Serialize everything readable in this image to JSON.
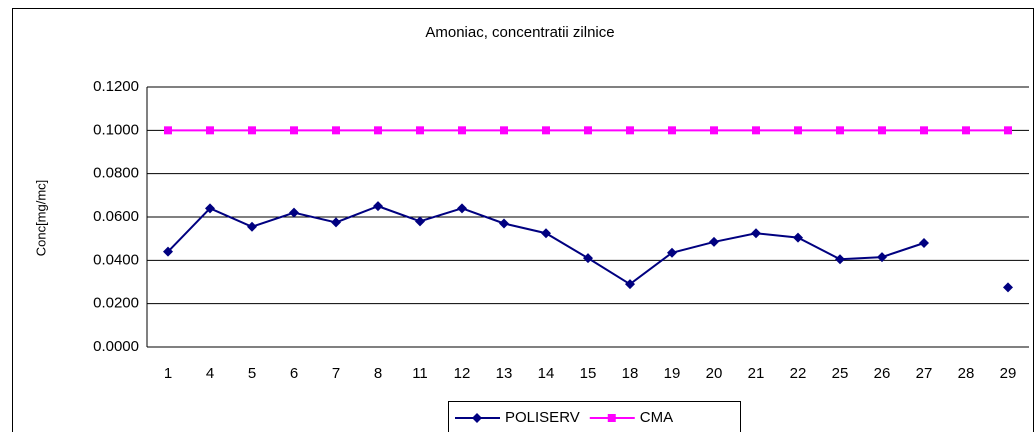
{
  "chart_data": {
    "type": "line",
    "title": "Amoniac, concentratii zilnice",
    "y_label": "Conc[mg/mc]",
    "categories": [
      "1",
      "4",
      "5",
      "6",
      "7",
      "8",
      "11",
      "12",
      "13",
      "14",
      "15",
      "18",
      "19",
      "20",
      "21",
      "22",
      "25",
      "26",
      "27",
      "28",
      "29"
    ],
    "series": [
      {
        "name": "POLISERV",
        "color": "#000080",
        "marker": "diamond",
        "values": [
          0.044,
          0.064,
          0.0555,
          0.062,
          0.0575,
          0.065,
          0.058,
          0.064,
          0.057,
          0.0525,
          0.041,
          0.029,
          0.0435,
          0.0485,
          0.0525,
          0.0505,
          0.0405,
          0.0415,
          0.048,
          null,
          0.0275
        ]
      },
      {
        "name": "CMA",
        "color": "#FF00FF",
        "marker": "square",
        "values": [
          0.1,
          0.1,
          0.1,
          0.1,
          0.1,
          0.1,
          0.1,
          0.1,
          0.1,
          0.1,
          0.1,
          0.1,
          0.1,
          0.1,
          0.1,
          0.1,
          0.1,
          0.1,
          0.1,
          0.1,
          0.1
        ]
      }
    ],
    "ylim": [
      0,
      0.12
    ],
    "yticks": [
      {
        "value": 0,
        "label": "0.0000"
      },
      {
        "value": 0.02,
        "label": "0.0200"
      },
      {
        "value": 0.04,
        "label": "0.0400"
      },
      {
        "value": 0.06,
        "label": "0.0600"
      },
      {
        "value": 0.08,
        "label": "0.0800"
      },
      {
        "value": 0.1,
        "label": "0.1000"
      },
      {
        "value": 0.12,
        "label": "0.1200"
      }
    ],
    "grid": true,
    "legend": "bottom"
  }
}
